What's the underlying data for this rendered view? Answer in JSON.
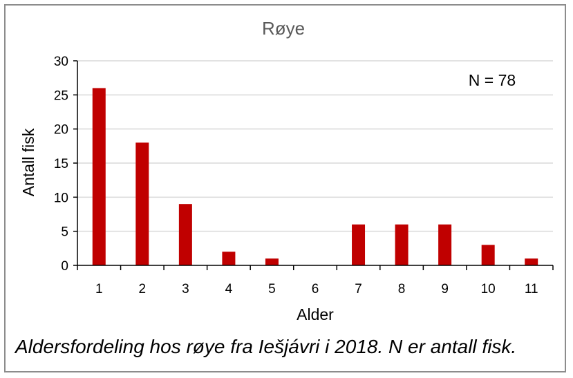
{
  "chart_data": {
    "type": "bar",
    "title": "Røye",
    "xlabel": "Alder",
    "ylabel": "Antall fisk",
    "categories": [
      "1",
      "2",
      "3",
      "4",
      "5",
      "6",
      "7",
      "8",
      "9",
      "10",
      "11"
    ],
    "values": [
      26,
      18,
      9,
      2,
      1,
      0,
      6,
      6,
      6,
      3,
      1
    ],
    "ylim": [
      0,
      30
    ],
    "yticks": [
      0,
      5,
      10,
      15,
      20,
      25,
      30
    ],
    "grid": true,
    "annotation": "N = 78",
    "bar_color": "#c00000",
    "title_color": "#595959",
    "grid_color": "#d9d9d9"
  },
  "caption": "Aldersfordeling hos røye fra Iešjávri i 2018. N er antall fisk."
}
